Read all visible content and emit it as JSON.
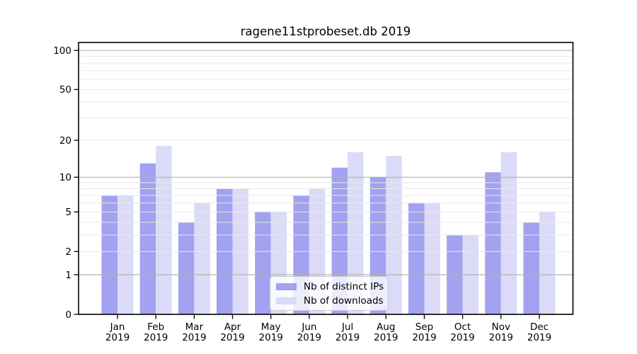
{
  "title": "ragene11stprobeset.db 2019",
  "colors": {
    "bar_ips": "#a2a2f0",
    "bar_downloads": "#dbdbf8",
    "grid_major": "#b3b3b3",
    "grid_minor": "#e9e9e9",
    "axis": "#000000",
    "legend_border": "#cccccc",
    "legend_bg": "rgba(255,255,255,0.8)"
  },
  "legend": {
    "items": [
      {
        "label": "Nb of distinct IPs",
        "color_key": "bar_ips"
      },
      {
        "label": "Nb of downloads",
        "color_key": "bar_downloads"
      }
    ]
  },
  "chart_data": {
    "type": "bar",
    "title": "ragene11stprobeset.db 2019",
    "categories": [
      "Jan",
      "Feb",
      "Mar",
      "Apr",
      "May",
      "Jun",
      "Jul",
      "Aug",
      "Sep",
      "Oct",
      "Nov",
      "Dec"
    ],
    "x_second_line": "2019",
    "series": [
      {
        "name": "Nb of distinct IPs",
        "values": [
          7,
          13,
          4,
          8,
          5,
          7,
          12,
          10,
          6,
          3,
          11,
          4
        ]
      },
      {
        "name": "Nb of downloads",
        "values": [
          7,
          18,
          6,
          8,
          5,
          8,
          16,
          15,
          6,
          3,
          16,
          5
        ]
      }
    ],
    "xlabel": "",
    "ylabel": "",
    "yscale": "log1p",
    "yticks": [
      0,
      1,
      2,
      5,
      10,
      20,
      50,
      100
    ],
    "ylim": [
      0,
      115
    ],
    "grid": "on",
    "legend_position": "lower-center-inside"
  }
}
